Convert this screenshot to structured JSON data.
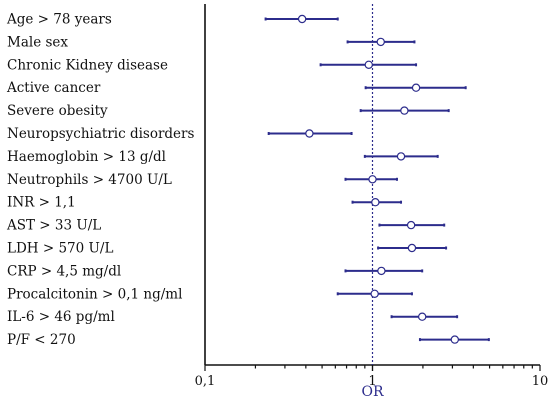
{
  "chart_data": {
    "type": "forest",
    "xscale": "log",
    "xlim": [
      0.1,
      10
    ],
    "reference_line": 1,
    "xlabel": "OR",
    "x_ticks": [
      {
        "value": 0.1,
        "label": "0,1"
      },
      {
        "value": 1,
        "label": "1"
      },
      {
        "value": 10,
        "label": "10"
      }
    ],
    "rows": [
      {
        "label": "Age > 78 years",
        "or": 0.38,
        "lo": 0.23,
        "hi": 0.62
      },
      {
        "label": "Male sex",
        "or": 1.12,
        "lo": 0.71,
        "hi": 1.78
      },
      {
        "label": "Chronic Kidney disease",
        "or": 0.95,
        "lo": 0.49,
        "hi": 1.82
      },
      {
        "label": "Active cancer",
        "or": 1.82,
        "lo": 0.91,
        "hi": 3.6
      },
      {
        "label": "Severe obesity",
        "or": 1.55,
        "lo": 0.85,
        "hi": 2.85
      },
      {
        "label": "Neuropsychiatric disorders",
        "or": 0.42,
        "lo": 0.24,
        "hi": 0.75
      },
      {
        "label": "Haemoglobin > 13 g/dl",
        "or": 1.48,
        "lo": 0.9,
        "hi": 2.45
      },
      {
        "label": "Neutrophils > 4700 U/L",
        "or": 1.0,
        "lo": 0.69,
        "hi": 1.4
      },
      {
        "label": "INR > 1,1",
        "or": 1.04,
        "lo": 0.76,
        "hi": 1.48
      },
      {
        "label": "AST > 33 U/L",
        "or": 1.7,
        "lo": 1.1,
        "hi": 2.68
      },
      {
        "label": "LDH > 570 U/L",
        "or": 1.72,
        "lo": 1.08,
        "hi": 2.75
      },
      {
        "label": "CRP > 4,5 mg/dl",
        "or": 1.13,
        "lo": 0.69,
        "hi": 1.98
      },
      {
        "label": "Procalcitonin > 0,1 ng/ml",
        "or": 1.03,
        "lo": 0.62,
        "hi": 1.72
      },
      {
        "label": "IL-6 > 46 pg/ml",
        "or": 1.98,
        "lo": 1.3,
        "hi": 3.2
      },
      {
        "label": "P/F < 270",
        "or": 3.1,
        "lo": 1.92,
        "hi": 4.95
      }
    ],
    "colors": {
      "interval": "#2c2c8c",
      "marker_fill": "#ffffff",
      "reference": "#2c2c8c",
      "axis": "#111111"
    }
  }
}
